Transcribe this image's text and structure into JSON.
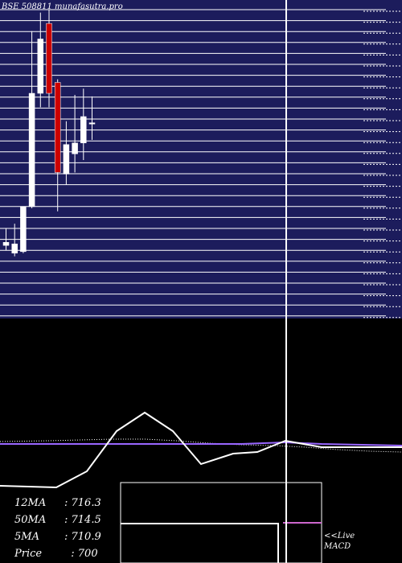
{
  "title": "BSE 508811 munafasutra.pro",
  "indicators": [
    {
      "label": "12MA",
      "value": ": 716.3"
    },
    {
      "label": "50MA",
      "value": ": 714.5"
    },
    {
      "label": "5MA",
      "value": ": 710.9"
    },
    {
      "label": "Price",
      "value": "  : 700"
    }
  ],
  "macd_label_line1": "<<Live",
  "macd_label_line2": "MACD",
  "colors": {
    "panel_bg": "#1c1c5c",
    "gridline": "#ffffff",
    "up_candle": "#ffffff",
    "down_candle": "#cc0000",
    "ma_purple": "#9966ff",
    "macd_line": "#ffffff"
  },
  "chart_data": {
    "type": "candlestick",
    "title": "BSE 508811 munafasutra.pro",
    "price_range": [
      660,
      860
    ],
    "candles": [
      {
        "open": 705,
        "high": 716,
        "low": 702,
        "close": 707
      },
      {
        "open": 700,
        "high": 719,
        "low": 698,
        "close": 706
      },
      {
        "open": 701,
        "high": 730,
        "low": 700,
        "close": 730
      },
      {
        "open": 730,
        "high": 843,
        "low": 729,
        "close": 803
      },
      {
        "open": 803,
        "high": 855,
        "low": 794,
        "close": 838
      },
      {
        "open": 848,
        "high": 857,
        "low": 794,
        "close": 803
      },
      {
        "open": 810,
        "high": 812,
        "low": 727,
        "close": 752
      },
      {
        "open": 751,
        "high": 785,
        "low": 744,
        "close": 770
      },
      {
        "open": 764,
        "high": 802,
        "low": 752,
        "close": 771
      },
      {
        "open": 771,
        "high": 806,
        "low": 760,
        "close": 788
      },
      {
        "open": 784,
        "high": 801,
        "low": 773,
        "close": 784
      }
    ],
    "ma_values": {
      "12MA": 716.3,
      "50MA": 714.5,
      "5MA": 710.9
    },
    "last_price": 700
  }
}
